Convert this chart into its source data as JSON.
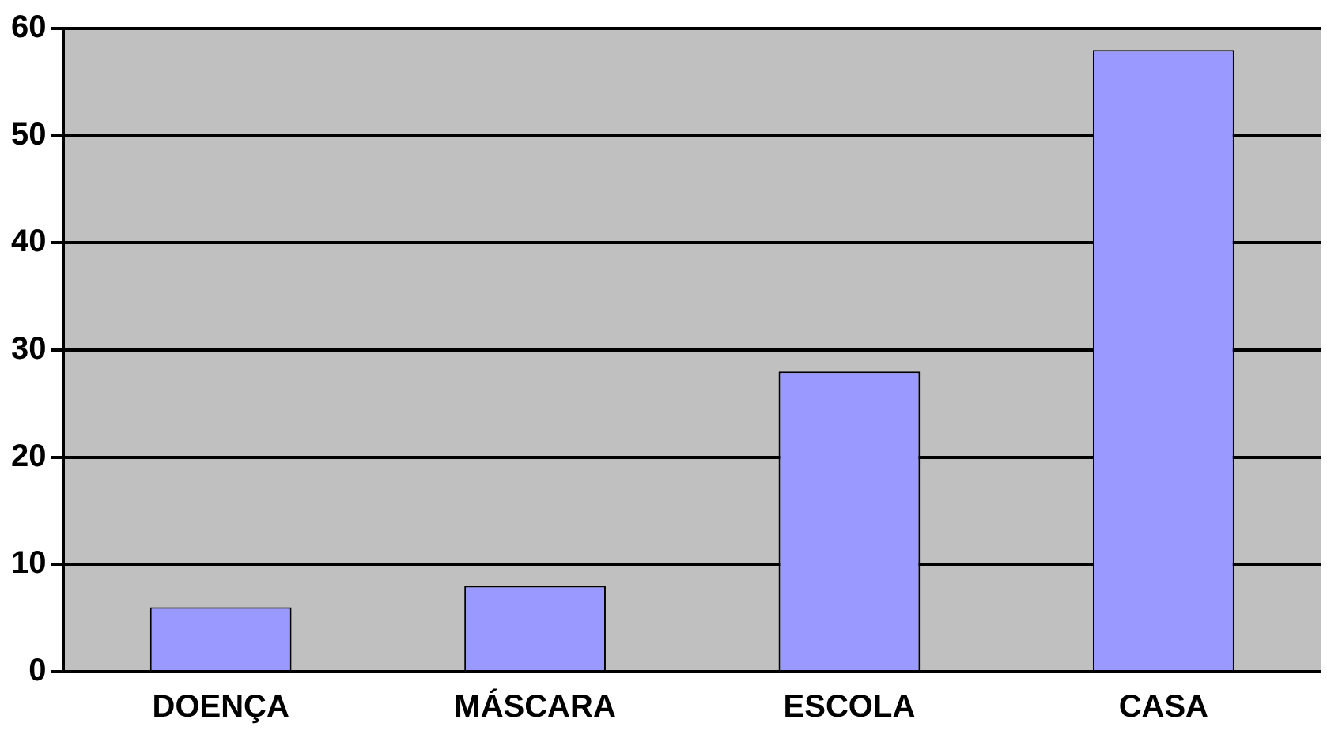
{
  "chart_data": {
    "type": "bar",
    "categories": [
      "DOENÇA",
      "MÁSCARA",
      "ESCOLA",
      "CASA"
    ],
    "values": [
      6,
      8,
      28,
      58
    ],
    "color": "#9999ff",
    "ylim": [
      0,
      60
    ],
    "yticks": [
      0,
      10,
      20,
      30,
      40,
      50,
      60
    ],
    "grid": "y",
    "legend": false
  }
}
